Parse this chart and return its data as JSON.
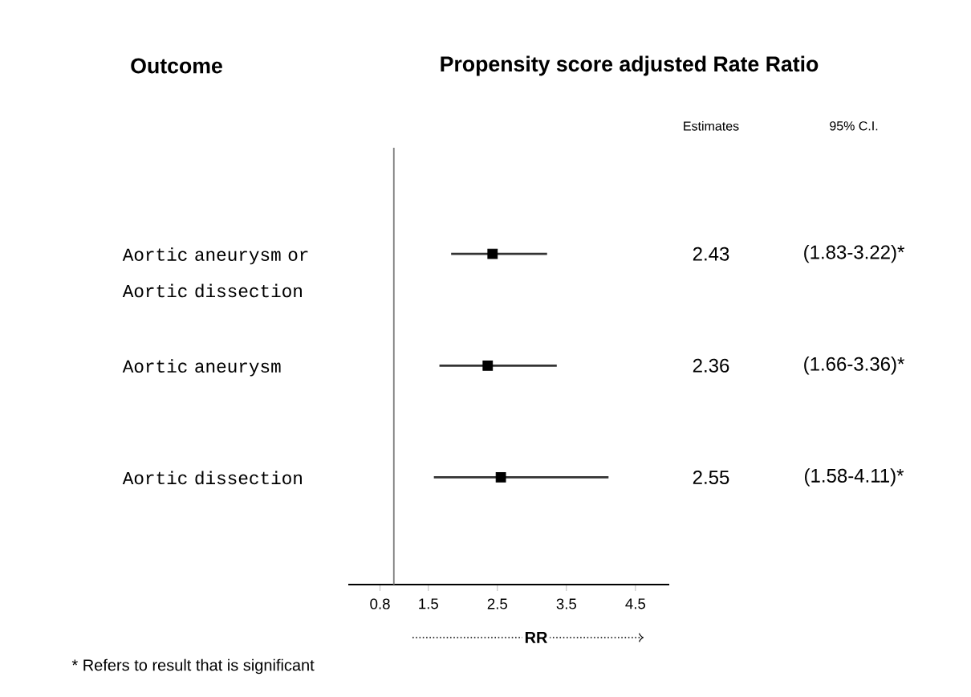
{
  "chart_data": {
    "type": "scatter",
    "orientation": "horizontal",
    "title": "Propensity score adjusted Rate Ratio",
    "ylabel": "Outcome",
    "xlabel": "RR",
    "categories": [
      "Aortic aneurysm or Aortic dissection",
      "Aortic aneurysm",
      "Aortic dissection"
    ],
    "values": [
      2.43,
      2.36,
      2.55
    ],
    "errors": [
      [
        1.83,
        3.22
      ],
      [
        1.66,
        3.36
      ],
      [
        1.58,
        4.11
      ]
    ],
    "color": "#000000",
    "marker": "square",
    "data_labels": true,
    "xlim": [
      0.34,
      4.99
    ],
    "xticks": [
      0.8,
      1.5,
      2.5,
      3.5,
      4.5
    ],
    "ref_lines": [
      {
        "axis": "x",
        "value": 1,
        "color": "#808080"
      }
    ],
    "annotations": [
      "Estimates",
      "95% C.I.",
      "(1.83-3.22)*",
      "(1.66-3.36)*",
      "(1.58-4.11)*",
      "* Refers to result that is significant"
    ]
  }
}
